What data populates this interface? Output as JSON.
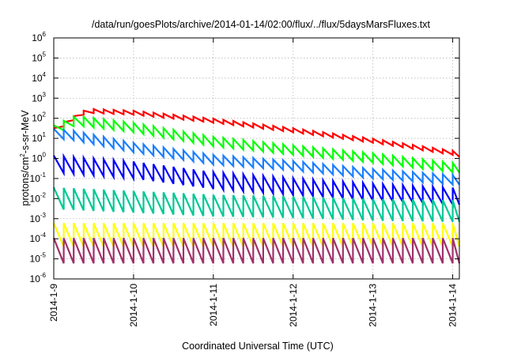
{
  "chart_data": {
    "type": "line",
    "title": "/data/run/goesPlots/archive/2014-01-14/02:00/flux/../flux/5daysMarsFluxes.txt",
    "xlabel": "Coordinated Universal Time (UTC)",
    "ylabel_prefix": "protons/cm",
    "ylabel_sup": "2",
    "ylabel_suffix": "-s-sr-MeV",
    "yscale": "log",
    "ylim": [
      1e-06,
      1000000.0
    ],
    "xlim": [
      "2014-01-09 00:00",
      "2014-01-14 02:00"
    ],
    "grid": true,
    "y_ticks": [
      {
        "base": "10",
        "exp": "-6",
        "value": 1e-06
      },
      {
        "base": "10",
        "exp": "-5",
        "value": 1e-05
      },
      {
        "base": "10",
        "exp": "-4",
        "value": 0.0001
      },
      {
        "base": "10",
        "exp": "-3",
        "value": 0.001
      },
      {
        "base": "10",
        "exp": "-2",
        "value": 0.01
      },
      {
        "base": "10",
        "exp": "-1",
        "value": 0.1
      },
      {
        "base": "10",
        "exp": "0",
        "value": 1.0
      },
      {
        "base": "10",
        "exp": "1",
        "value": 10.0
      },
      {
        "base": "10",
        "exp": "2",
        "value": 100.0
      },
      {
        "base": "10",
        "exp": "3",
        "value": 1000.0
      },
      {
        "base": "10",
        "exp": "4",
        "value": 10000.0
      },
      {
        "base": "10",
        "exp": "5",
        "value": 100000.0
      },
      {
        "base": "10",
        "exp": "6",
        "value": 1000000.0
      }
    ],
    "x_ticks": [
      {
        "label": "2014-1-9",
        "value": "2014-01-09"
      },
      {
        "label": "2014-1-10",
        "value": "2014-01-10"
      },
      {
        "label": "2014-1-11",
        "value": "2014-01-11"
      },
      {
        "label": "2014-1-12",
        "value": "2014-01-12"
      },
      {
        "label": "2014-1-13",
        "value": "2014-01-13"
      },
      {
        "label": "2014-1-14",
        "value": "2014-01-14"
      }
    ],
    "sawtooth_period_hours": 3,
    "series": [
      {
        "color": "#ff0000",
        "valley_points": [
          [
            "2014-01-09 00:00",
            20
          ],
          [
            "2014-01-09 03:00",
            40
          ],
          [
            "2014-01-09 06:00",
            80
          ],
          [
            "2014-01-09 09:00",
            150
          ],
          [
            "2014-01-09 12:00",
            180
          ],
          [
            "2014-01-10 00:00",
            150
          ],
          [
            "2014-01-11 00:00",
            60
          ],
          [
            "2014-01-12 00:00",
            20
          ],
          [
            "2014-01-13 00:00",
            6
          ],
          [
            "2014-01-14 00:00",
            1.5
          ],
          [
            "2014-01-14 02:00",
            1.2
          ]
        ],
        "peak_ratio": 1.6
      },
      {
        "color": "#00ff00",
        "valley_points": [
          [
            "2014-01-09 00:00",
            15
          ],
          [
            "2014-01-09 03:00",
            25
          ],
          [
            "2014-01-09 06:00",
            40
          ],
          [
            "2014-01-09 09:00",
            40
          ],
          [
            "2014-01-10 00:00",
            20
          ],
          [
            "2014-01-11 00:00",
            4
          ],
          [
            "2014-01-12 00:00",
            1.5
          ],
          [
            "2014-01-13 00:00",
            0.6
          ],
          [
            "2014-01-14 00:00",
            0.2
          ],
          [
            "2014-01-14 02:00",
            0.2
          ]
        ],
        "peak_ratio": 3
      },
      {
        "color": "#1a7fff",
        "valley_points": [
          [
            "2014-01-09 00:00",
            10
          ],
          [
            "2014-01-09 06:00",
            8
          ],
          [
            "2014-01-10 00:00",
            2
          ],
          [
            "2014-01-11 00:00",
            0.5
          ],
          [
            "2014-01-12 00:00",
            0.25
          ],
          [
            "2014-01-13 00:00",
            0.1
          ],
          [
            "2014-01-14 00:00",
            0.05
          ],
          [
            "2014-01-14 02:00",
            0.05
          ]
        ],
        "peak_ratio": 3
      },
      {
        "color": "#0000ff",
        "valley_points": [
          [
            "2014-01-09 00:00",
            0.2
          ],
          [
            "2014-01-10 00:00",
            0.1
          ],
          [
            "2014-01-11 00:00",
            0.03
          ],
          [
            "2014-01-12 00:00",
            0.015
          ],
          [
            "2014-01-13 00:00",
            0.008
          ],
          [
            "2014-01-14 00:00",
            0.005
          ],
          [
            "2014-01-14 02:00",
            0.005
          ]
        ],
        "peak_ratio": 7
      },
      {
        "color": "#00c896",
        "valley_points": [
          [
            "2014-01-09 00:00",
            0.003
          ],
          [
            "2014-01-10 00:00",
            0.002
          ],
          [
            "2014-01-11 00:00",
            0.0013
          ],
          [
            "2014-01-12 00:00",
            0.0011
          ],
          [
            "2014-01-13 00:00",
            0.0008
          ],
          [
            "2014-01-14 00:00",
            0.0007
          ],
          [
            "2014-01-14 02:00",
            0.0007
          ]
        ],
        "peak_ratio": 12
      },
      {
        "color": "#ffff00",
        "valley_points": [
          [
            "2014-01-09 00:00",
            4e-05
          ],
          [
            "2014-01-14 02:00",
            4e-05
          ]
        ],
        "peak_ratio": 15
      },
      {
        "color": "#a0306a",
        "valley_points": [
          [
            "2014-01-09 00:00",
            6e-06
          ],
          [
            "2014-01-14 02:00",
            6e-06
          ]
        ],
        "peak_ratio": 18
      }
    ]
  }
}
